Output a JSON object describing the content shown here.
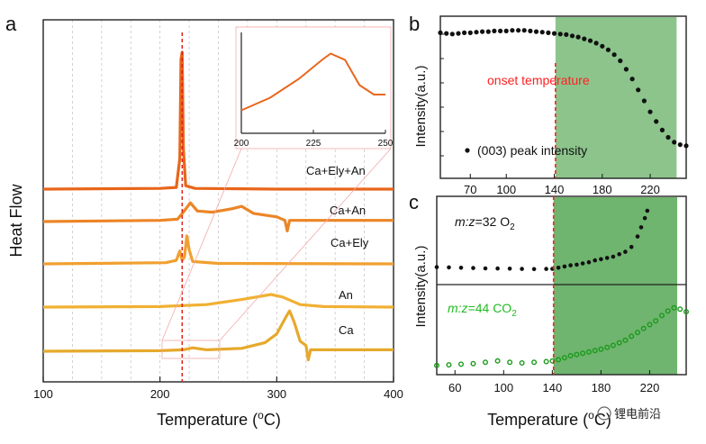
{
  "chart_data": [
    {
      "panel": "a",
      "type": "line",
      "xlabel_prefix": "Temperature (",
      "xlabel_unit_sup": "o",
      "xlabel_suffix": "C)",
      "ylabel": "Heat Flow",
      "xlim": [
        100,
        400
      ],
      "xticks": [
        100,
        200,
        300,
        400
      ],
      "vline": {
        "x": 219,
        "color": "#e0201a"
      },
      "series": [
        {
          "name": "Ca+Ely+An",
          "color": "#e8661a",
          "offset": 4,
          "points": [
            [
              100,
              0
            ],
            [
              200,
              0.02
            ],
            [
              214,
              0.05
            ],
            [
              217,
              0.9
            ],
            [
              218,
              3.8
            ],
            [
              219,
              4.0
            ],
            [
              220,
              1.2
            ],
            [
              222,
              0.1
            ],
            [
              230,
              0.02
            ],
            [
              300,
              0
            ],
            [
              400,
              0
            ]
          ]
        },
        {
          "name": "Ca+An",
          "color": "#ec8526",
          "offset": 3,
          "points": [
            [
              100,
              0
            ],
            [
              200,
              0.05
            ],
            [
              215,
              0.1
            ],
            [
              220,
              0.4
            ],
            [
              226,
              0.8
            ],
            [
              232,
              0.45
            ],
            [
              245,
              0.4
            ],
            [
              262,
              0.55
            ],
            [
              270,
              0.65
            ],
            [
              280,
              0.35
            ],
            [
              300,
              0.2
            ],
            [
              307,
              0.05
            ],
            [
              309,
              -0.4
            ],
            [
              311,
              0.05
            ],
            [
              330,
              0.05
            ],
            [
              400,
              0.05
            ]
          ]
        },
        {
          "name": "Ca+Ely",
          "color": "#f0a030",
          "offset": 2,
          "points": [
            [
              100,
              0
            ],
            [
              205,
              0.05
            ],
            [
              214,
              0.15
            ],
            [
              217,
              0.55
            ],
            [
              219,
              0.15
            ],
            [
              221,
              0.3
            ],
            [
              223,
              1.2
            ],
            [
              225,
              0.6
            ],
            [
              228,
              0.1
            ],
            [
              250,
              0.02
            ],
            [
              400,
              0
            ]
          ]
        },
        {
          "name": "An",
          "color": "#f1b033",
          "offset": 1,
          "points": [
            [
              100,
              0
            ],
            [
              200,
              0.02
            ],
            [
              240,
              0.1
            ],
            [
              270,
              0.3
            ],
            [
              295,
              0.5
            ],
            [
              305,
              0.4
            ],
            [
              320,
              0.1
            ],
            [
              340,
              0.02
            ],
            [
              400,
              0
            ]
          ]
        },
        {
          "name": "Ca",
          "color": "#e6a92c",
          "offset": 0,
          "points": [
            [
              100,
              0
            ],
            [
              200,
              0.02
            ],
            [
              220,
              0.05
            ],
            [
              228,
              0.12
            ],
            [
              240,
              0.05
            ],
            [
              270,
              0.1
            ],
            [
              290,
              0.3
            ],
            [
              300,
              0.6
            ],
            [
              308,
              1.2
            ],
            [
              311,
              1.4
            ],
            [
              315,
              1.0
            ],
            [
              320,
              0.35
            ],
            [
              325,
              0.2
            ],
            [
              327,
              -0.3
            ],
            [
              329,
              0.05
            ],
            [
              345,
              0.05
            ],
            [
              400,
              0.05
            ]
          ]
        }
      ],
      "inset": {
        "xlim": [
          200,
          250
        ],
        "xticks": [
          200,
          225,
          250
        ],
        "color": "#e8661a",
        "points": [
          [
            200,
            0.05
          ],
          [
            210,
            0.25
          ],
          [
            220,
            0.55
          ],
          [
            228,
            0.85
          ],
          [
            231,
            0.95
          ],
          [
            236,
            0.85
          ],
          [
            241,
            0.45
          ],
          [
            246,
            0.3
          ],
          [
            250,
            0.3
          ]
        ]
      }
    },
    {
      "panel": "b",
      "type": "scatter",
      "ylabel": "Intensity(a.u.)",
      "xlim": [
        45,
        250
      ],
      "xticks": [
        70,
        100,
        140,
        180,
        220
      ],
      "legend": "(003) peak intensity",
      "annotation": "onset temperature",
      "annotation_color": "#ff2020",
      "vline_x": 141,
      "shade_range": [
        141,
        242
      ],
      "shade_color": "#8cc48c",
      "points": [
        [
          45,
          0.96
        ],
        [
          50,
          0.955
        ],
        [
          55,
          0.95
        ],
        [
          60,
          0.955
        ],
        [
          65,
          0.96
        ],
        [
          70,
          0.96
        ],
        [
          75,
          0.965
        ],
        [
          80,
          0.97
        ],
        [
          85,
          0.97
        ],
        [
          90,
          0.975
        ],
        [
          95,
          0.975
        ],
        [
          100,
          0.975
        ],
        [
          105,
          0.98
        ],
        [
          110,
          0.98
        ],
        [
          115,
          0.98
        ],
        [
          120,
          0.975
        ],
        [
          125,
          0.97
        ],
        [
          130,
          0.965
        ],
        [
          135,
          0.96
        ],
        [
          140,
          0.955
        ],
        [
          145,
          0.95
        ],
        [
          150,
          0.945
        ],
        [
          155,
          0.935
        ],
        [
          160,
          0.925
        ],
        [
          165,
          0.91
        ],
        [
          170,
          0.895
        ],
        [
          175,
          0.875
        ],
        [
          180,
          0.85
        ],
        [
          185,
          0.82
        ],
        [
          190,
          0.78
        ],
        [
          195,
          0.73
        ],
        [
          200,
          0.66
        ],
        [
          205,
          0.58
        ],
        [
          210,
          0.49
        ],
        [
          215,
          0.4
        ],
        [
          220,
          0.31
        ],
        [
          225,
          0.23
        ],
        [
          230,
          0.16
        ],
        [
          235,
          0.1
        ],
        [
          240,
          0.06
        ],
        [
          245,
          0.04
        ],
        [
          250,
          0.03
        ]
      ]
    },
    {
      "panel": "c",
      "type": "scatter",
      "xlabel_prefix": "Temperature (",
      "xlabel_unit_sup": "o",
      "xlabel_suffix": "C)",
      "ylabel": "Intensity(a.u.)",
      "xlim": [
        45,
        250
      ],
      "xticks": [
        60,
        100,
        140,
        180,
        220
      ],
      "vline_x": 141,
      "shade_range": [
        141,
        247
      ],
      "shade_color": "#6fb46f",
      "upper": {
        "label_prefix": "m:z",
        "label_mid": "=32 O",
        "label_sub": "2",
        "label_color": "#111111",
        "dot_color": "#111111",
        "points": [
          [
            45,
            0.05
          ],
          [
            55,
            0.045
          ],
          [
            65,
            0.04
          ],
          [
            75,
            0.035
          ],
          [
            85,
            0.03
          ],
          [
            95,
            0.028
          ],
          [
            105,
            0.025
          ],
          [
            115,
            0.02
          ],
          [
            125,
            0.018
          ],
          [
            135,
            0.02
          ],
          [
            140,
            0.022
          ],
          [
            145,
            0.04
          ],
          [
            150,
            0.06
          ],
          [
            155,
            0.08
          ],
          [
            160,
            0.09
          ],
          [
            165,
            0.11
          ],
          [
            170,
            0.13
          ],
          [
            175,
            0.16
          ],
          [
            180,
            0.18
          ],
          [
            185,
            0.2
          ],
          [
            190,
            0.22
          ],
          [
            195,
            0.26
          ],
          [
            200,
            0.3
          ],
          [
            205,
            0.38
          ],
          [
            210,
            0.55
          ],
          [
            213,
            0.7
          ],
          [
            216,
            0.85
          ],
          [
            218,
            0.97
          ]
        ]
      },
      "lower": {
        "label_prefix": "m:z",
        "label_mid": "=44 CO",
        "label_sub": "2",
        "label_color": "#22bb22",
        "dot_color": "#1a9a1a",
        "points": [
          [
            45,
            0.03
          ],
          [
            55,
            0.04
          ],
          [
            65,
            0.05
          ],
          [
            75,
            0.06
          ],
          [
            85,
            0.08
          ],
          [
            95,
            0.1
          ],
          [
            105,
            0.08
          ],
          [
            115,
            0.07
          ],
          [
            125,
            0.08
          ],
          [
            135,
            0.09
          ],
          [
            140,
            0.1
          ],
          [
            145,
            0.12
          ],
          [
            150,
            0.15
          ],
          [
            155,
            0.18
          ],
          [
            160,
            0.2
          ],
          [
            165,
            0.22
          ],
          [
            170,
            0.24
          ],
          [
            175,
            0.26
          ],
          [
            180,
            0.28
          ],
          [
            185,
            0.31
          ],
          [
            190,
            0.34
          ],
          [
            195,
            0.38
          ],
          [
            200,
            0.42
          ],
          [
            205,
            0.48
          ],
          [
            210,
            0.54
          ],
          [
            215,
            0.6
          ],
          [
            220,
            0.66
          ],
          [
            225,
            0.72
          ],
          [
            230,
            0.8
          ],
          [
            235,
            0.87
          ],
          [
            240,
            0.92
          ],
          [
            245,
            0.9
          ],
          [
            250,
            0.86
          ]
        ]
      }
    }
  ],
  "watermark": "锂电前沿"
}
